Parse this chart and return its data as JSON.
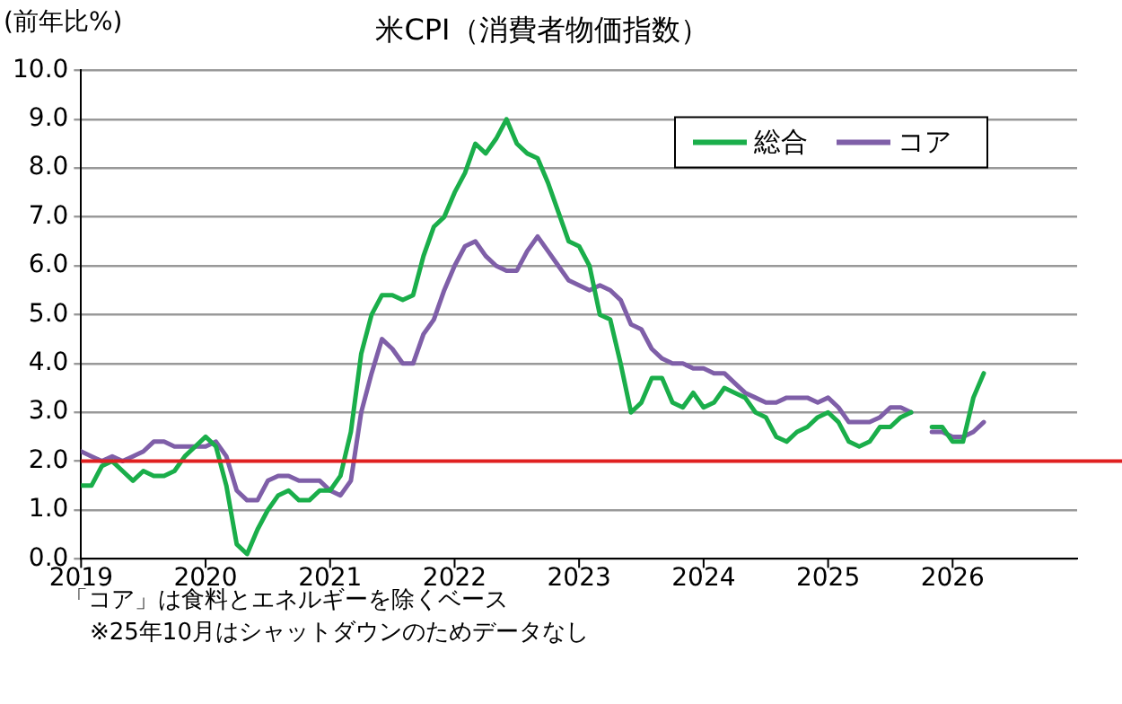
{
  "chart_data": {
    "type": "line",
    "title": "米CPI（消費者物価指数）",
    "ylabel": "(前年比%)",
    "x": [
      "2019-01",
      "2019-02",
      "2019-03",
      "2019-04",
      "2019-05",
      "2019-06",
      "2019-07",
      "2019-08",
      "2019-09",
      "2019-10",
      "2019-11",
      "2019-12",
      "2020-01",
      "2020-02",
      "2020-03",
      "2020-04",
      "2020-05",
      "2020-06",
      "2020-07",
      "2020-08",
      "2020-09",
      "2020-10",
      "2020-11",
      "2020-12",
      "2021-01",
      "2021-02",
      "2021-03",
      "2021-04",
      "2021-05",
      "2021-06",
      "2021-07",
      "2021-08",
      "2021-09",
      "2021-10",
      "2021-11",
      "2021-12",
      "2022-01",
      "2022-02",
      "2022-03",
      "2022-04",
      "2022-05",
      "2022-06",
      "2022-07",
      "2022-08",
      "2022-09",
      "2022-10",
      "2022-11",
      "2022-12",
      "2023-01",
      "2023-02",
      "2023-03",
      "2023-04",
      "2023-05",
      "2023-06",
      "2023-07",
      "2023-08",
      "2023-09",
      "2023-10",
      "2023-11",
      "2023-12",
      "2024-01",
      "2024-02",
      "2024-03",
      "2024-04",
      "2024-05",
      "2024-06",
      "2024-07",
      "2024-08",
      "2024-09",
      "2024-10",
      "2024-11",
      "2024-12",
      "2025-01",
      "2025-02",
      "2025-03",
      "2025-04",
      "2025-05",
      "2025-06",
      "2025-07",
      "2025-08",
      "2025-09",
      "2025-10",
      "2025-11",
      "2025-12",
      "2026-01",
      "2026-02",
      "2026-03",
      "2026-04"
    ],
    "series": [
      {
        "name": "総合",
        "color": "#1aae4a",
        "values": [
          1.5,
          1.5,
          1.9,
          2.0,
          1.8,
          1.6,
          1.8,
          1.7,
          1.7,
          1.8,
          2.1,
          2.3,
          2.5,
          2.3,
          1.5,
          0.3,
          0.1,
          0.6,
          1.0,
          1.3,
          1.4,
          1.2,
          1.2,
          1.4,
          1.4,
          1.7,
          2.6,
          4.2,
          5.0,
          5.4,
          5.4,
          5.3,
          5.4,
          6.2,
          6.8,
          7.0,
          7.5,
          7.9,
          8.5,
          8.3,
          8.6,
          9.0,
          8.5,
          8.3,
          8.2,
          7.7,
          7.1,
          6.5,
          6.4,
          6.0,
          5.0,
          4.9,
          4.0,
          3.0,
          3.2,
          3.7,
          3.7,
          3.2,
          3.1,
          3.4,
          3.1,
          3.2,
          3.5,
          3.4,
          3.3,
          3.0,
          2.9,
          2.5,
          2.4,
          2.6,
          2.7,
          2.9,
          3.0,
          2.8,
          2.4,
          2.3,
          2.4,
          2.7,
          2.7,
          2.9,
          3.0,
          null,
          2.7,
          2.7,
          2.4,
          2.4,
          3.3,
          3.8
        ]
      },
      {
        "name": "コア",
        "color": "#7f5fa8",
        "values": [
          2.2,
          2.1,
          2.0,
          2.1,
          2.0,
          2.1,
          2.2,
          2.4,
          2.4,
          2.3,
          2.3,
          2.3,
          2.3,
          2.4,
          2.1,
          1.4,
          1.2,
          1.2,
          1.6,
          1.7,
          1.7,
          1.6,
          1.6,
          1.6,
          1.4,
          1.3,
          1.6,
          3.0,
          3.8,
          4.5,
          4.3,
          4.0,
          4.0,
          4.6,
          4.9,
          5.5,
          6.0,
          6.4,
          6.5,
          6.2,
          6.0,
          5.9,
          5.9,
          6.3,
          6.6,
          6.3,
          6.0,
          5.7,
          5.6,
          5.5,
          5.6,
          5.5,
          5.3,
          4.8,
          4.7,
          4.3,
          4.1,
          4.0,
          4.0,
          3.9,
          3.9,
          3.8,
          3.8,
          3.6,
          3.4,
          3.3,
          3.2,
          3.2,
          3.3,
          3.3,
          3.3,
          3.2,
          3.3,
          3.1,
          2.8,
          2.8,
          2.8,
          2.9,
          3.1,
          3.1,
          3.0,
          null,
          2.6,
          2.6,
          2.5,
          2.5,
          2.6,
          2.8
        ]
      }
    ],
    "xlim": [
      "2019-01",
      "2027-01"
    ],
    "xticks": [
      {
        "value": "2019-01",
        "label": "2019"
      },
      {
        "value": "2020-01",
        "label": "2020"
      },
      {
        "value": "2021-01",
        "label": "2021"
      },
      {
        "value": "2022-01",
        "label": "2022"
      },
      {
        "value": "2023-01",
        "label": "2023"
      },
      {
        "value": "2024-01",
        "label": "2024"
      },
      {
        "value": "2025-01",
        "label": "2025"
      },
      {
        "value": "2026-01",
        "label": "2026"
      }
    ],
    "ylim": [
      0,
      10
    ],
    "yticks": [
      {
        "value": 0,
        "label": "0.0"
      },
      {
        "value": 1,
        "label": "1.0"
      },
      {
        "value": 2,
        "label": "2.0"
      },
      {
        "value": 3,
        "label": "3.0"
      },
      {
        "value": 4,
        "label": "4.0"
      },
      {
        "value": 5,
        "label": "5.0"
      },
      {
        "value": 6,
        "label": "6.0"
      },
      {
        "value": 7,
        "label": "7.0"
      },
      {
        "value": 8,
        "label": "8.0"
      },
      {
        "value": 9,
        "label": "9.0"
      },
      {
        "value": 10,
        "label": "10.0"
      }
    ],
    "ref_lines": [
      {
        "axis": "y",
        "value": 2,
        "color": "#e02020"
      }
    ],
    "grid": "y",
    "legend": "top right",
    "marker": "none",
    "line_style": "solid",
    "annotations": [
      "「コア」は食料とエネルギーを除くベース",
      "※25年10月はシャットダウンのためデータなし"
    ]
  }
}
